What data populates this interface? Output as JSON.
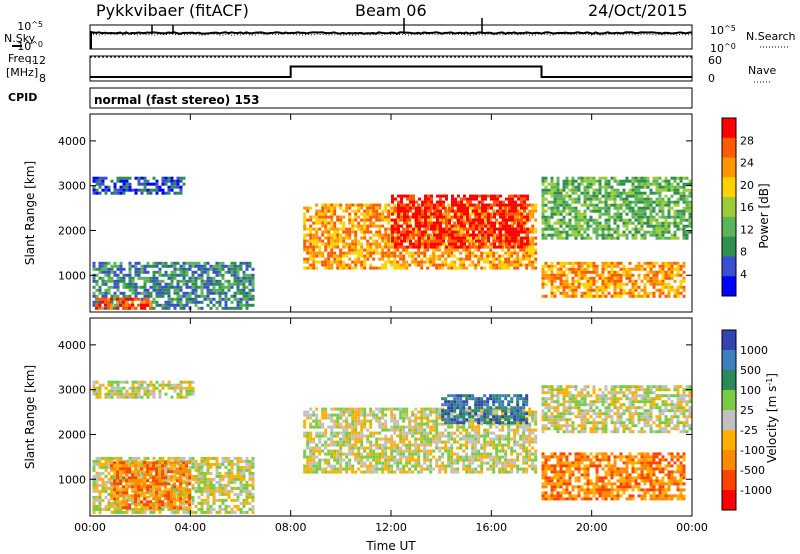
{
  "header": {
    "station": "Pykkvibaer (fitACF)",
    "beam": "Beam 06",
    "date": "24/Oct/2015"
  },
  "labels": {
    "nsky": "N.Sky",
    "nsearch": "N.Search",
    "freq_line1": "Freq.",
    "freq_line2": "[MHz]",
    "nave": "Nave",
    "cpid": "CPID",
    "cpid_value": "normal (fast stereo) 153",
    "noise_tick_hi_base": "10",
    "noise_tick_hi_exp": "^5",
    "noise_tick_lo_base": "10",
    "noise_tick_lo_exp": "^0",
    "freq_ticks": [
      "12",
      "8"
    ],
    "nave_ticks": [
      "60",
      "0"
    ]
  },
  "colors": {
    "power_scale": [
      "#0000ff",
      "#3a4fd0",
      "#2f8f4f",
      "#5db35a",
      "#9ccc3a",
      "#ffd200",
      "#ff9600",
      "#ff5a00",
      "#ff0000"
    ],
    "velocity_scale": [
      "#3244b0",
      "#3f7fc0",
      "#2a8a5a",
      "#77cc44",
      "#c0c0c0",
      "#ffb000",
      "#ff8a00",
      "#ff4400",
      "#ff0000"
    ],
    "ground_scatter": "#c0c0c0"
  },
  "chart_data": [
    {
      "type": "line",
      "title": "",
      "series": [
        {
          "name": "N.Sky",
          "values": [
            5,
            5,
            5,
            5,
            5,
            5,
            5,
            5,
            5,
            5,
            5,
            5,
            5,
            5,
            5,
            5,
            5,
            5,
            5,
            5,
            5,
            5,
            5,
            5
          ]
        },
        {
          "name": "N.Search",
          "values": [
            5,
            5,
            5,
            5,
            5,
            5,
            5,
            5,
            5,
            5,
            5,
            5,
            5,
            5,
            5,
            5,
            5,
            5,
            5,
            5,
            5,
            5,
            5,
            5
          ]
        }
      ],
      "x": [
        "00",
        "01",
        "02",
        "03",
        "04",
        "05",
        "06",
        "07",
        "08",
        "09",
        "10",
        "11",
        "12",
        "13",
        "14",
        "15",
        "16",
        "17",
        "18",
        "19",
        "20",
        "21",
        "22",
        "23"
      ]
    },
    {
      "type": "line",
      "ylabel": "Freq. [MHz]",
      "series": [
        {
          "name": "Freq",
          "x_hours": [
            0,
            8,
            8,
            18,
            18,
            24
          ],
          "values": [
            8.3,
            8.3,
            10.4,
            10.4,
            8.3,
            8.3
          ]
        },
        {
          "name": "Nave",
          "x_hours": [
            0,
            24
          ],
          "values": [
            55,
            55
          ]
        }
      ]
    },
    {
      "type": "heatmap",
      "ylabel": "Slant Range [km]",
      "xlabel": "Time UT",
      "zlabel": "Power [dB]",
      "xlim_hours": [
        0,
        24
      ],
      "ylim": [
        180,
        4600
      ],
      "colorbar_ticks": [
        "4",
        "8",
        "12",
        "16",
        "20",
        "24",
        "28"
      ],
      "x_ticks": [
        "00:00",
        "04:00",
        "08:00",
        "12:00",
        "16:00",
        "20:00",
        "00:00"
      ],
      "y_ticks": [
        "1000",
        "2000",
        "3000",
        "4000"
      ],
      "regions": [
        {
          "t0": 0.1,
          "t1": 3.8,
          "r0": 2800,
          "r1": 3200,
          "level": 1
        },
        {
          "t0": 0.1,
          "t1": 6.5,
          "r0": 250,
          "r1": 1300,
          "level": 2
        },
        {
          "t0": 0.2,
          "t1": 2.5,
          "r0": 250,
          "r1": 500,
          "level": 7
        },
        {
          "t0": 8.5,
          "t1": 17.8,
          "r0": 1100,
          "r1": 2600,
          "level": 6
        },
        {
          "t0": 12.0,
          "t1": 17.5,
          "r0": 1600,
          "r1": 2800,
          "level": 8
        },
        {
          "t0": 18.0,
          "t1": 23.8,
          "r0": 500,
          "r1": 1300,
          "level": 6
        },
        {
          "t0": 18.0,
          "t1": 24.0,
          "r0": 1800,
          "r1": 3200,
          "level": 3
        }
      ]
    },
    {
      "type": "heatmap",
      "ylabel": "Slant Range [km]",
      "xlabel": "Time UT",
      "zlabel": "Velocity [m s^-1]",
      "colorbar_ticks": [
        "1000",
        "500",
        "100",
        "25",
        "-25",
        "-100",
        "-500",
        "-1000"
      ],
      "x_ticks": [
        "00:00",
        "04:00",
        "08:00",
        "12:00",
        "16:00",
        "20:00",
        "00:00"
      ],
      "y_ticks": [
        "1000",
        "2000",
        "3000",
        "4000"
      ],
      "regions": [
        {
          "t0": 0.1,
          "t1": 4.2,
          "r0": 2800,
          "r1": 3200,
          "level": 4
        },
        {
          "t0": 0.1,
          "t1": 6.5,
          "r0": 250,
          "r1": 1500,
          "level": 4
        },
        {
          "t0": 0.8,
          "t1": 4.0,
          "r0": 300,
          "r1": 1400,
          "level": 6
        },
        {
          "t0": 8.5,
          "t1": 17.8,
          "r0": 1100,
          "r1": 2600,
          "level": 4
        },
        {
          "t0": 14.0,
          "t1": 17.5,
          "r0": 2200,
          "r1": 2900,
          "level": 1
        },
        {
          "t0": 18.0,
          "t1": 23.8,
          "r0": 500,
          "r1": 1600,
          "level": 6
        },
        {
          "t0": 18.0,
          "t1": 24.0,
          "r0": 2000,
          "r1": 3100,
          "level": 4
        }
      ]
    }
  ]
}
